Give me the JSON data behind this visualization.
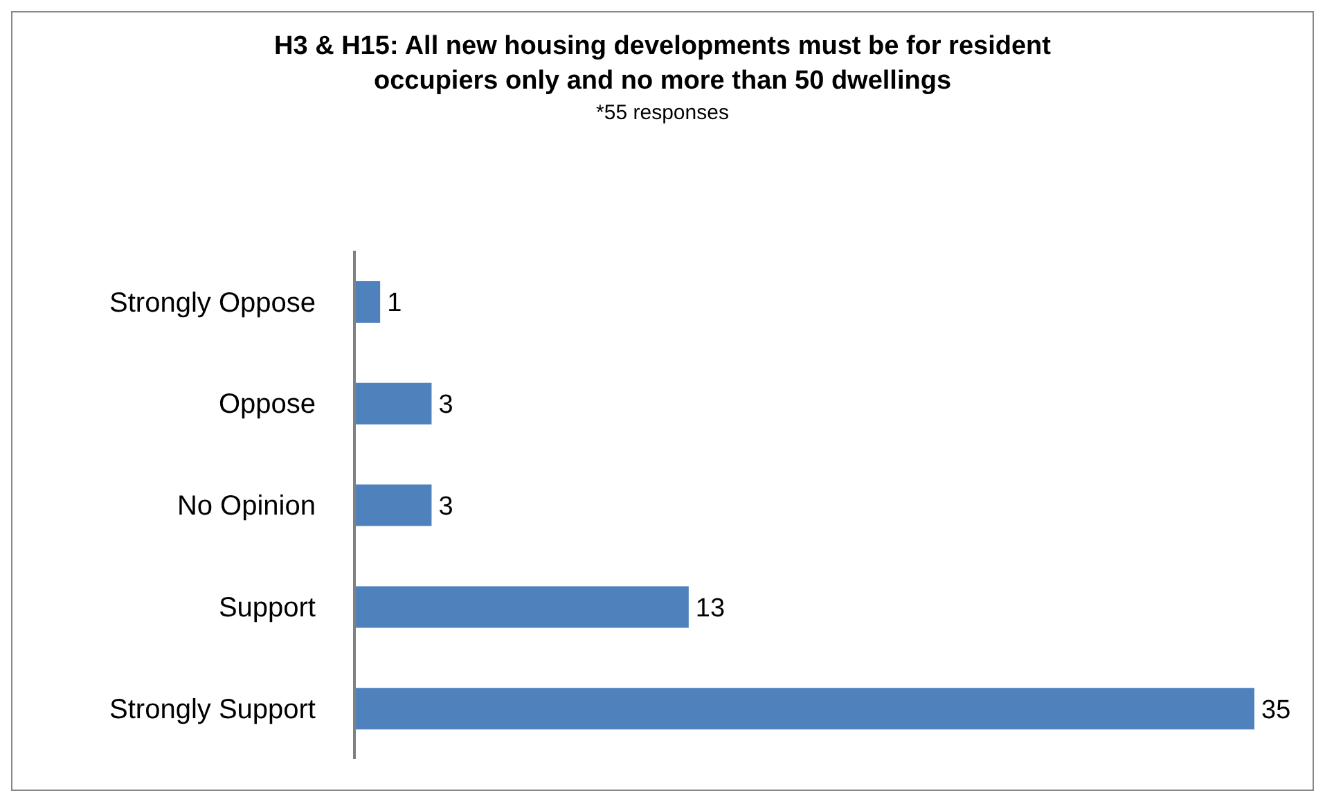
{
  "chart_data": {
    "type": "bar",
    "orientation": "horizontal",
    "title": "H3 & H15: All new housing developments must be for resident occupiers only and no more than 50 dwellings",
    "subtitle": "*55 responses",
    "categories": [
      "Strongly Oppose",
      "Oppose",
      "No Opinion",
      "Support",
      "Strongly Support"
    ],
    "values": [
      1,
      3,
      3,
      13,
      35
    ],
    "color": "#4f81bd",
    "data_labels": true
  }
}
